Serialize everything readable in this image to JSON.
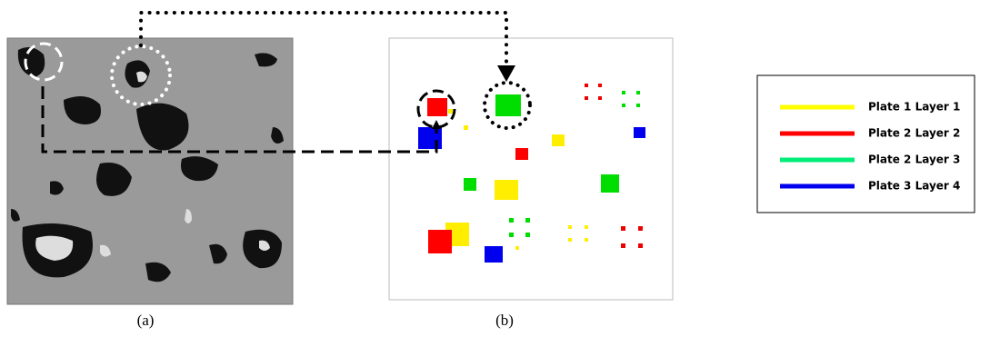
{
  "captions": [
    "(a)",
    "(b)"
  ],
  "legend": {
    "items": [
      {
        "label": "Plate 1 Layer 1",
        "color": "#ffff00"
      },
      {
        "label": "Plate 2 Layer 2",
        "color": "#ff0000"
      },
      {
        "label": "Plate 2 Layer 3",
        "color": "#00ee77"
      },
      {
        "label": "Plate 3 Layer 4",
        "color": "#0000ee"
      }
    ]
  }
}
